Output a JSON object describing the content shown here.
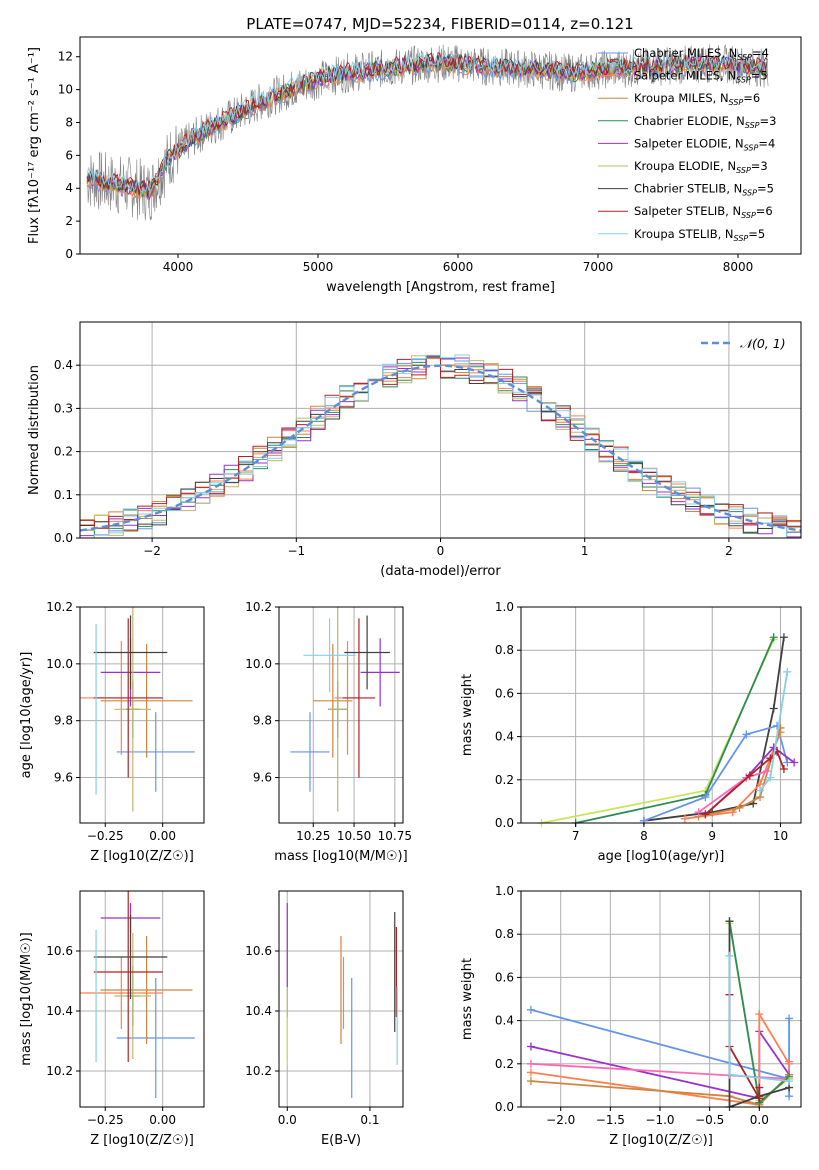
{
  "figure_title": "PLATE=0747, MJD=52234, FIBERID=0114, z=0.121",
  "colors": {
    "grid": "#b0b0b0",
    "series": [
      "#6495ED",
      "#FF7F50",
      "#CD853F",
      "#2E8B57",
      "#9932CC",
      "#BDB76B",
      "#404040",
      "#B22222",
      "#87CEEB"
    ]
  },
  "chart_data": [
    {
      "id": "spectrum",
      "type": "line",
      "xlabel": "wavelength [Angstrom, rest frame]",
      "ylabel": "Flux [fλ10⁻¹⁷ erg cm⁻² s⁻¹ A⁻¹]",
      "xlim": [
        3300,
        8450
      ],
      "ylim": [
        0,
        13.2
      ],
      "xticks": [
        4000,
        5000,
        6000,
        7000,
        8000
      ],
      "yticks": [
        0,
        2,
        4,
        6,
        8,
        10,
        12
      ],
      "grid": false,
      "legend_position": "top-right",
      "continuum": {
        "x": [
          3350,
          3500,
          3650,
          3800,
          3950,
          4100,
          4250,
          4400,
          4600,
          4800,
          5000,
          5200,
          5400,
          5600,
          5800,
          6000,
          6200,
          6400,
          6600,
          6800,
          7000,
          7200,
          7400,
          7600,
          7800,
          8000,
          8200
        ],
        "y": [
          4.6,
          4.3,
          4.1,
          3.8,
          6.0,
          7.0,
          7.8,
          8.4,
          9.3,
          10.0,
          10.6,
          11.0,
          11.2,
          11.4,
          11.6,
          11.6,
          11.4,
          11.3,
          11.2,
          11.0,
          11.2,
          11.3,
          11.4,
          11.5,
          11.6,
          11.5,
          11.3
        ]
      },
      "series": [
        {
          "name": "Chabrier MILES, N_SSP=4",
          "color": "#6495ED"
        },
        {
          "name": "Salpeter MILES, N_SSP=5",
          "color": "#FF7F50"
        },
        {
          "name": "Kroupa MILES, N_SSP=6",
          "color": "#CD853F"
        },
        {
          "name": "Chabrier ELODIE, N_SSP=3",
          "color": "#2E8B57"
        },
        {
          "name": "Salpeter ELODIE, N_SSP=4",
          "color": "#9932CC"
        },
        {
          "name": "Kroupa ELODIE, N_SSP=3",
          "color": "#BDB76B"
        },
        {
          "name": "Chabrier STELIB, N_SSP=5",
          "color": "#404040"
        },
        {
          "name": "Salpeter STELIB, N_SSP=6",
          "color": "#B22222"
        },
        {
          "name": "Kroupa STELIB, N_SSP=5",
          "color": "#87CEEB"
        }
      ]
    },
    {
      "id": "residuals",
      "type": "line",
      "xlabel": "(data-model)/error",
      "ylabel": "Normed distribution",
      "xlim": [
        -2.5,
        2.5
      ],
      "ylim": [
        0,
        0.5
      ],
      "xticks": [
        -2,
        -1,
        0,
        1,
        2
      ],
      "yticks": [
        0.0,
        0.1,
        0.2,
        0.3,
        0.4
      ],
      "grid": true,
      "legend_position": "top-right",
      "legend": "𝒩(0, 1)",
      "gaussian": {
        "mean": 0,
        "sigma": 1
      },
      "bin_width": 0.1
    },
    {
      "id": "z-age",
      "type": "scatter",
      "xlabel": "Z [log10(Z/Z☉)]",
      "ylabel": "age  [log10(age/yr)]",
      "xlim": [
        -0.36,
        0.18
      ],
      "ylim": [
        9.44,
        10.2
      ],
      "xticks": [
        -0.25,
        0.0
      ],
      "yticks": [
        9.6,
        9.8,
        10.0,
        10.2
      ],
      "grid": true,
      "points": [
        {
          "color": "#6495ED",
          "x": -0.03,
          "xerr": 0.17,
          "y": 9.69,
          "yerr": 0.14
        },
        {
          "color": "#FF7F50",
          "x": -0.18,
          "xerr": 0.18,
          "y": 9.88,
          "yerr": 0.2
        },
        {
          "color": "#CD853F",
          "x": -0.07,
          "xerr": 0.2,
          "y": 9.87,
          "yerr": 0.2
        },
        {
          "color": "#2E8B57",
          "x": -0.13,
          "xerr": 0.03,
          "y": 9.84,
          "yerr": 0.1
        },
        {
          "color": "#9932CC",
          "x": -0.14,
          "xerr": 0.13,
          "y": 9.97,
          "yerr": 0.12
        },
        {
          "color": "#BDB76B",
          "x": -0.13,
          "xerr": 0.08,
          "y": 9.84,
          "yerr": 0.36
        },
        {
          "color": "#404040",
          "x": -0.14,
          "xerr": 0.16,
          "y": 10.04,
          "yerr": 0.13
        },
        {
          "color": "#B22222",
          "x": -0.15,
          "xerr": 0.15,
          "y": 9.88,
          "yerr": 0.28
        },
        {
          "color": "#87CEEB",
          "x": -0.29,
          "xerr": 0.0,
          "y": 9.84,
          "yerr": 0.3
        }
      ]
    },
    {
      "id": "mass-age",
      "type": "scatter",
      "xlabel": "mass [log10(M/M☉)]",
      "ylabel": "",
      "xlim": [
        10.04,
        10.8
      ],
      "ylim": [
        9.44,
        10.2
      ],
      "xticks": [
        10.25,
        10.5,
        10.75
      ],
      "yticks": [
        9.6,
        9.8,
        10.0,
        10.2
      ],
      "grid": true,
      "points": [
        {
          "color": "#6495ED",
          "x": 10.23,
          "xerr": 0.12,
          "y": 9.69,
          "yerr": 0.14
        },
        {
          "color": "#FF7F50",
          "x": 10.46,
          "xerr": 0.08,
          "y": 9.88,
          "yerr": 0.2
        },
        {
          "color": "#CD853F",
          "x": 10.37,
          "xerr": 0.12,
          "y": 9.87,
          "yerr": 0.2
        },
        {
          "color": "#2E8B57",
          "x": 10.4,
          "xerr": 0.06,
          "y": 9.84,
          "yerr": 0.1
        },
        {
          "color": "#9932CC",
          "x": 10.66,
          "xerr": 0.12,
          "y": 9.97,
          "yerr": 0.12
        },
        {
          "color": "#BDB76B",
          "x": 10.4,
          "xerr": 0.06,
          "y": 9.84,
          "yerr": 0.36
        },
        {
          "color": "#404040",
          "x": 10.58,
          "xerr": 0.14,
          "y": 10.04,
          "yerr": 0.13
        },
        {
          "color": "#B22222",
          "x": 10.53,
          "xerr": 0.1,
          "y": 9.88,
          "yerr": 0.28
        },
        {
          "color": "#87CEEB",
          "x": 10.35,
          "xerr": 0.16,
          "y": 10.03,
          "yerr": 0.13
        }
      ]
    },
    {
      "id": "age-weight",
      "type": "line",
      "xlabel": "age  [log10(age/yr)]",
      "ylabel": "mass weight",
      "xlim": [
        6.2,
        10.3
      ],
      "ylim": [
        0,
        1.0
      ],
      "xticks": [
        7,
        8,
        9,
        10
      ],
      "yticks": [
        0.0,
        0.2,
        0.4,
        0.6,
        0.8,
        1.0
      ],
      "grid": true,
      "series": [
        {
          "color": "#C8E65A",
          "x": [
            6.5,
            8.9,
            9.9
          ],
          "y": [
            0.0,
            0.15,
            0.85
          ]
        },
        {
          "color": "#2E8B57",
          "x": [
            7.0,
            8.9,
            9.9
          ],
          "y": [
            0.0,
            0.13,
            0.86
          ]
        },
        {
          "color": "#404040",
          "x": [
            8.0,
            9.0,
            9.6,
            9.9,
            10.05
          ],
          "y": [
            0.01,
            0.05,
            0.09,
            0.53,
            0.86
          ]
        },
        {
          "color": "#6495ED",
          "x": [
            8.0,
            8.9,
            9.5,
            9.95,
            10.1
          ],
          "y": [
            0.01,
            0.12,
            0.41,
            0.45,
            0.28
          ]
        },
        {
          "color": "#FF7F50",
          "x": [
            8.6,
            9.3,
            9.7,
            10.0
          ],
          "y": [
            0.02,
            0.05,
            0.18,
            0.42
          ]
        },
        {
          "color": "#CD853F",
          "x": [
            8.8,
            9.4,
            9.7,
            10.0
          ],
          "y": [
            0.03,
            0.07,
            0.12,
            0.44
          ]
        },
        {
          "color": "#9932CC",
          "x": [
            8.9,
            9.5,
            9.9,
            10.2
          ],
          "y": [
            0.04,
            0.21,
            0.35,
            0.28
          ]
        },
        {
          "color": "#FF69B4",
          "x": [
            8.8,
            9.5,
            9.8
          ],
          "y": [
            0.05,
            0.21,
            0.24
          ]
        },
        {
          "color": "#B22222",
          "x": [
            8.9,
            9.55,
            9.85,
            9.95,
            10.05
          ],
          "y": [
            0.04,
            0.22,
            0.3,
            0.33,
            0.25
          ]
        },
        {
          "color": "#87CEEB",
          "x": [
            9.7,
            9.85,
            10.1
          ],
          "y": [
            0.15,
            0.21,
            0.7
          ]
        }
      ]
    },
    {
      "id": "z-mass",
      "type": "scatter",
      "xlabel": "Z [log10(Z/Z☉)]",
      "ylabel": "mass [log10(M/M☉)]",
      "xlim": [
        -0.36,
        0.18
      ],
      "ylim": [
        10.08,
        10.8
      ],
      "xticks": [
        -0.25,
        0.0
      ],
      "yticks": [
        10.2,
        10.4,
        10.6
      ],
      "grid": true,
      "points": [
        {
          "color": "#6495ED",
          "x": -0.03,
          "xerr": 0.17,
          "y": 10.31,
          "yerr": 0.2
        },
        {
          "color": "#FF7F50",
          "x": -0.18,
          "xerr": 0.18,
          "y": 10.46,
          "yerr": 0.12
        },
        {
          "color": "#CD853F",
          "x": -0.07,
          "xerr": 0.2,
          "y": 10.47,
          "yerr": 0.18
        },
        {
          "color": "#2E8B57",
          "x": -0.13,
          "xerr": 0.03,
          "y": 10.45,
          "yerr": 0.1
        },
        {
          "color": "#9932CC",
          "x": -0.14,
          "xerr": 0.13,
          "y": 10.71,
          "yerr": 0.05
        },
        {
          "color": "#BDB76B",
          "x": -0.13,
          "xerr": 0.08,
          "y": 10.45,
          "yerr": 0.21
        },
        {
          "color": "#404040",
          "x": -0.14,
          "xerr": 0.16,
          "y": 10.58,
          "yerr": 0.14
        },
        {
          "color": "#B22222",
          "x": -0.15,
          "xerr": 0.15,
          "y": 10.53,
          "yerr": 0.3
        },
        {
          "color": "#87CEEB",
          "x": -0.29,
          "xerr": 0.0,
          "y": 10.45,
          "yerr": 0.22
        }
      ]
    },
    {
      "id": "ebv-mass",
      "type": "scatter",
      "xlabel": "E(B-V)",
      "ylabel": "",
      "xlim": [
        -0.01,
        0.14
      ],
      "ylim": [
        10.08,
        10.8
      ],
      "xticks": [
        0.0,
        0.1
      ],
      "yticks": [
        10.2,
        10.4,
        10.6
      ],
      "grid": true,
      "points": [
        {
          "color": "#BDB76B",
          "x": 0.0,
          "xerr": 0.0,
          "y": 10.36,
          "yerr": 0.12
        },
        {
          "color": "#9932CC",
          "x": 0.0,
          "xerr": 0.0,
          "y": 10.62,
          "yerr": 0.14
        },
        {
          "color": "#C8E65A",
          "x": 0.0,
          "xerr": 0.0,
          "y": 10.3,
          "yerr": 0.08
        },
        {
          "color": "#FF7F50",
          "x": 0.068,
          "xerr": 0.0,
          "y": 10.46,
          "yerr": 0.12
        },
        {
          "color": "#CD853F",
          "x": 0.065,
          "xerr": 0.0,
          "y": 10.47,
          "yerr": 0.18
        },
        {
          "color": "#6495ED",
          "x": 0.078,
          "xerr": 0.0,
          "y": 10.31,
          "yerr": 0.2
        },
        {
          "color": "#404040",
          "x": 0.13,
          "xerr": 0.0,
          "y": 10.53,
          "yerr": 0.2
        },
        {
          "color": "#B22222",
          "x": 0.132,
          "xerr": 0.0,
          "y": 10.53,
          "yerr": 0.15
        },
        {
          "color": "#87CEEB",
          "x": 0.133,
          "xerr": 0.0,
          "y": 10.35,
          "yerr": 0.13
        }
      ]
    },
    {
      "id": "z-weight",
      "type": "line",
      "xlabel": "Z [log10(Z/Z☉)]",
      "ylabel": "mass weight",
      "xlim": [
        -2.4,
        0.42
      ],
      "ylim": [
        0,
        1.0
      ],
      "xticks": [
        -2.0,
        -1.5,
        -1.0,
        -0.5,
        0.0
      ],
      "yticks": [
        0.0,
        0.2,
        0.4,
        0.6,
        0.8,
        1.0
      ],
      "grid": true,
      "series": [
        {
          "color": "#6495ED",
          "x": [
            -2.3,
            0.3,
            0.3,
            0.3
          ],
          "y": [
            0.45,
            0.13,
            0.41,
            0.05
          ]
        },
        {
          "color": "#9932CC",
          "x": [
            -2.3,
            0.0,
            0.0,
            0.3
          ],
          "y": [
            0.28,
            0.04,
            0.35,
            0.15
          ]
        },
        {
          "color": "#FF69B4",
          "x": [
            -2.3,
            0.3,
            0.3
          ],
          "y": [
            0.2,
            0.13,
            0.21
          ]
        },
        {
          "color": "#FF7F50",
          "x": [
            -2.3,
            0.0,
            0.0,
            0.3
          ],
          "y": [
            0.16,
            0.01,
            0.43,
            0.2
          ]
        },
        {
          "color": "#CD853F",
          "x": [
            -2.3,
            -0.3,
            0.0,
            0.3
          ],
          "y": [
            0.12,
            0.05,
            0.01,
            0.15
          ]
        },
        {
          "color": "#C8E65A",
          "x": [
            -0.3,
            0.0,
            0.3
          ],
          "y": [
            0.85,
            0.03,
            0.13
          ]
        },
        {
          "color": "#2E8B57",
          "x": [
            -0.3,
            0.0,
            0.3
          ],
          "y": [
            0.86,
            0.02,
            0.14
          ]
        },
        {
          "color": "#404040",
          "x": [
            -0.3,
            -0.3,
            0.0,
            0.3
          ],
          "y": [
            0.86,
            0.0,
            0.05,
            0.09
          ]
        },
        {
          "color": "#B22222",
          "x": [
            -0.3,
            -0.3,
            0.0,
            0.0
          ],
          "y": [
            0.52,
            0.28,
            0.04,
            0.09
          ]
        },
        {
          "color": "#87CEEB",
          "x": [
            -0.3,
            -0.3,
            0.3
          ],
          "y": [
            0.7,
            0.15,
            0.12
          ]
        }
      ]
    }
  ]
}
